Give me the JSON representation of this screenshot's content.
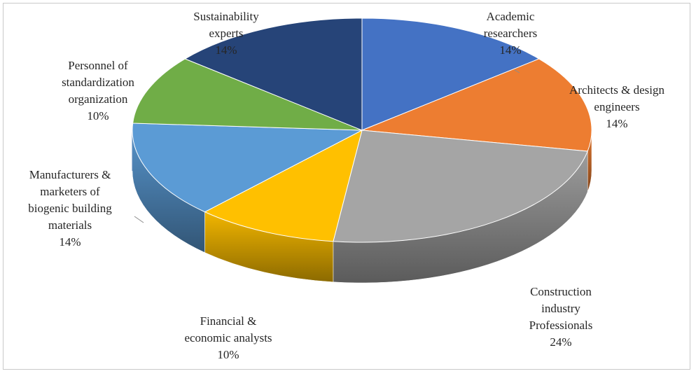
{
  "chart_data": {
    "type": "pie",
    "title": "",
    "style": "3d-exploded-none",
    "slices": [
      {
        "label_lines": [
          "Academic",
          "researchers"
        ],
        "value": 14,
        "pct": "14%",
        "color": "#4472C4"
      },
      {
        "label_lines": [
          "Architects & design",
          "engineers"
        ],
        "value": 14,
        "pct": "14%",
        "color": "#ED7D31"
      },
      {
        "label_lines": [
          "Construction",
          "industry",
          "Professionals"
        ],
        "value": 24,
        "pct": "24%",
        "color": "#A5A5A5"
      },
      {
        "label_lines": [
          "Financial &",
          "economic analysts"
        ],
        "value": 10,
        "pct": "10%",
        "color": "#FFC000"
      },
      {
        "label_lines": [
          "Manufacturers &",
          "marketers  of",
          "biogenic building",
          "materials"
        ],
        "value": 14,
        "pct": "14%",
        "color": "#5B9BD5"
      },
      {
        "label_lines": [
          "Personnel of",
          "standardization",
          "organization"
        ],
        "value": 10,
        "pct": "10%",
        "color": "#70AD47"
      },
      {
        "label_lines": [
          "Sustainability",
          "experts"
        ],
        "value": 14,
        "pct": "14%",
        "color": "#264478"
      }
    ]
  }
}
